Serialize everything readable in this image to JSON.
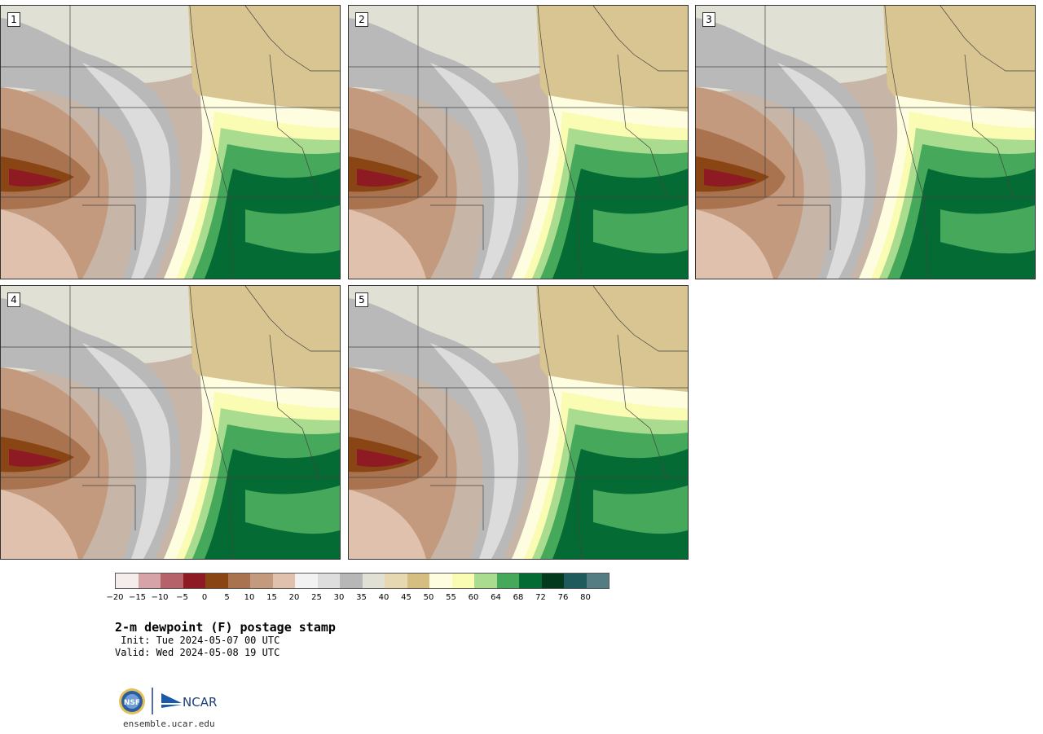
{
  "panels": [
    {
      "label": "1"
    },
    {
      "label": "2"
    },
    {
      "label": "3"
    },
    {
      "label": "4"
    },
    {
      "label": "5"
    }
  ],
  "colorbar": {
    "colors": [
      "#f5ecec",
      "#d6a3a8",
      "#b6626a",
      "#8e1a24",
      "#8a4515",
      "#a9734f",
      "#c39a7e",
      "#dfc1ad",
      "#f2f2f2",
      "#dddddd",
      "#b7b7b7",
      "#e0e0d4",
      "#e6d8b1",
      "#d6be82",
      "#fefde0",
      "#fafcb4",
      "#a9dc8f",
      "#46a85a",
      "#056b34",
      "#033a1e",
      "#1f5b5c",
      "#537d82"
    ],
    "tick_labels": [
      "−20",
      "−15",
      "−10",
      "−5",
      "0",
      "5",
      "10",
      "15",
      "20",
      "25",
      "30",
      "35",
      "40",
      "45",
      "50",
      "55",
      "60",
      "64",
      "68",
      "72",
      "76",
      "80"
    ]
  },
  "title": "2-m dewpoint (F) postage stamp",
  "init": " Init: Tue 2024-05-07 00 UTC",
  "valid": "Valid: Wed 2024-05-08 19 UTC",
  "logo": {
    "nsf": "NSF",
    "ncar": "NCAR"
  },
  "site": "ensemble.ucar.edu"
}
